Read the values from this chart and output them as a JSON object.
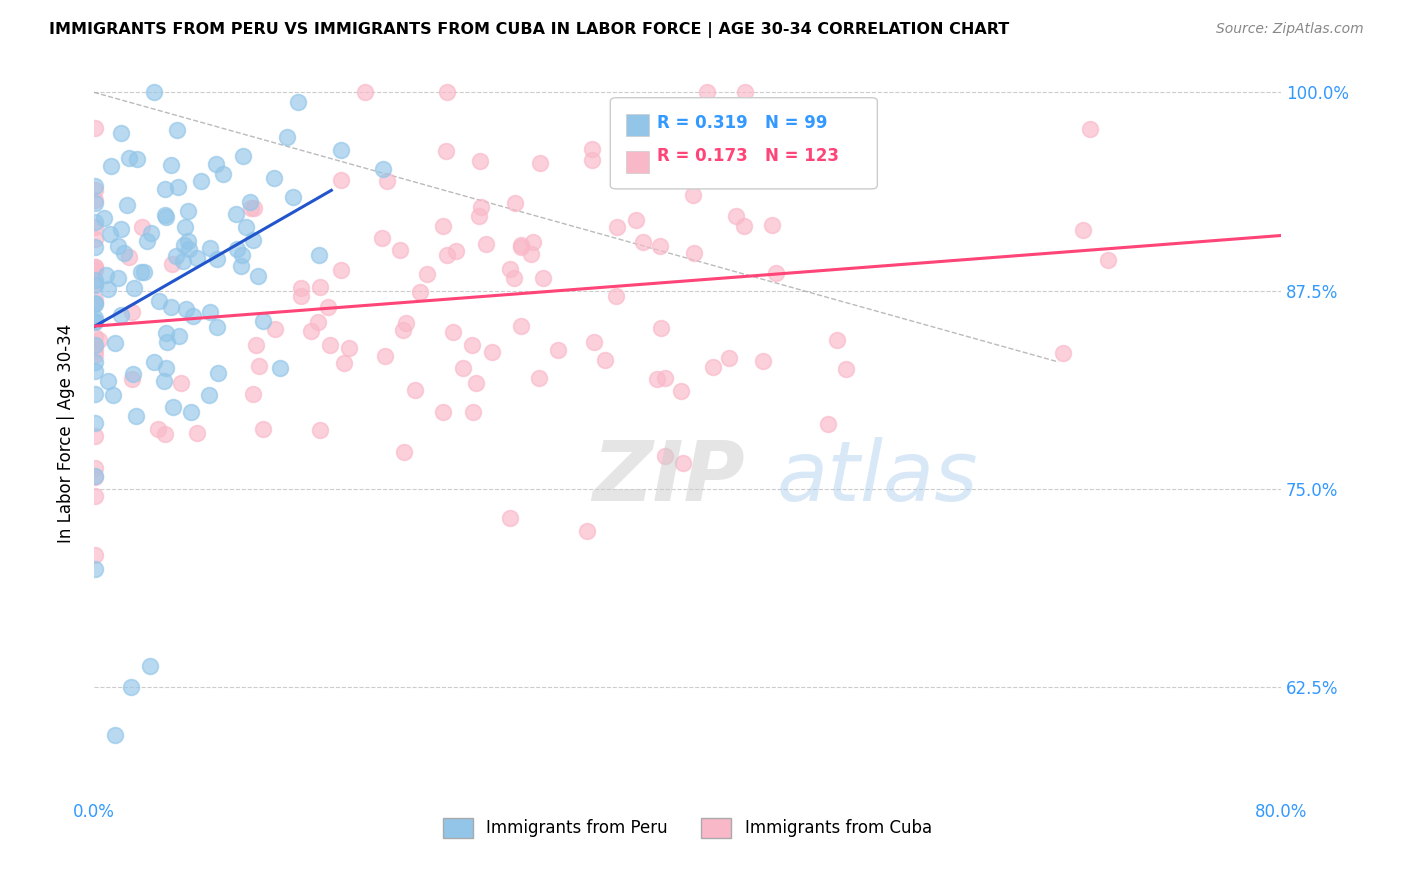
{
  "title": "IMMIGRANTS FROM PERU VS IMMIGRANTS FROM CUBA IN LABOR FORCE | AGE 30-34 CORRELATION CHART",
  "source": "Source: ZipAtlas.com",
  "ylabel": "In Labor Force | Age 30-34",
  "legend_peru": "Immigrants from Peru",
  "legend_cuba": "Immigrants from Cuba",
  "r_peru": 0.319,
  "n_peru": 99,
  "r_cuba": 0.173,
  "n_cuba": 123,
  "color_peru": "#92C5E8",
  "color_cuba": "#F9B8C8",
  "trend_peru": "#2255CC",
  "trend_cuba": "#FF4477",
  "xlim": [
    0.0,
    0.8
  ],
  "ylim": [
    0.555,
    1.015
  ],
  "xticks": [
    0.0,
    0.1,
    0.2,
    0.3,
    0.4,
    0.5,
    0.6,
    0.7,
    0.8
  ],
  "xticklabels": [
    "0.0%",
    "",
    "",
    "",
    "",
    "",
    "",
    "",
    "80.0%"
  ],
  "yticks": [
    0.625,
    0.75,
    0.875,
    1.0
  ],
  "yticklabels": [
    "62.5%",
    "75.0%",
    "87.5%",
    "100.0%"
  ],
  "watermark_zip": "ZIP",
  "watermark_atlas": "atlas",
  "seed": 12345
}
